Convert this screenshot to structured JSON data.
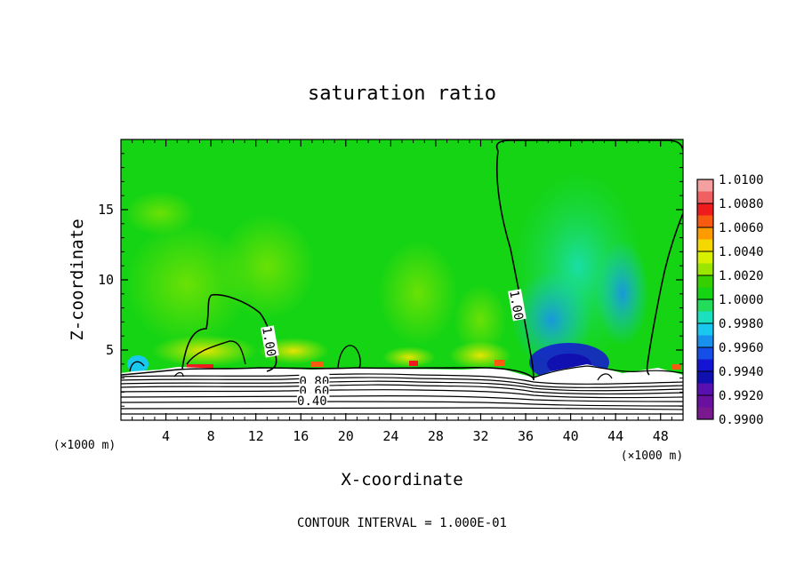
{
  "chart_data": {
    "type": "heatmap",
    "title": "saturation ratio",
    "xlabel": "X-coordinate",
    "ylabel": "Z-coordinate",
    "x_unit": "(×1000 m)",
    "footer": "CONTOUR INTERVAL = 1.000E-01",
    "xlim": [
      0,
      50
    ],
    "ylim": [
      0,
      20
    ],
    "x_ticks": [
      4,
      8,
      12,
      16,
      20,
      24,
      28,
      32,
      36,
      40,
      44,
      48
    ],
    "y_ticks": [
      5,
      10,
      15
    ],
    "colorbar": {
      "labels": [
        "1.0100",
        "1.0080",
        "1.0060",
        "1.0040",
        "1.0020",
        "1.0000",
        "0.9980",
        "0.9960",
        "0.9940",
        "0.9920",
        "0.9900"
      ],
      "colors": [
        "#f4a0a0",
        "#f06060",
        "#ee1c1c",
        "#f85a10",
        "#ff9a00",
        "#f5d800",
        "#d8f000",
        "#9ae600",
        "#36d000",
        "#14d414",
        "#22dc5a",
        "#1ae0c0",
        "#18c8ee",
        "#1890ee",
        "#1450e8",
        "#1414d4",
        "#1010b0",
        "#5a10b0",
        "#6a10a0",
        "#7a1890"
      ]
    },
    "contour_labels": [
      {
        "text": "1.00",
        "x": 13.2,
        "z": 5.6
      },
      {
        "text": "1.00",
        "x": 35.2,
        "z": 8.2
      },
      {
        "text": "0.80",
        "x": 17.2,
        "z": 2.8
      },
      {
        "text": "0.60",
        "x": 17.2,
        "z": 2.1
      },
      {
        "text": "0.40",
        "x": 17.0,
        "z": 1.4
      }
    ]
  }
}
